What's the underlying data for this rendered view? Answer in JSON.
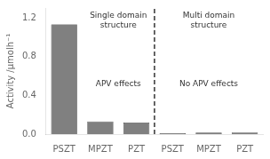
{
  "chart_data": {
    "type": "bar",
    "categories": [
      "PSZT",
      "MPZT",
      "PZT",
      "PSZT",
      "MPZT",
      "PZT"
    ],
    "values": [
      1.13,
      0.13,
      0.12,
      0.01,
      0.015,
      0.015
    ],
    "color": "#808080",
    "ylabel": "Activity /μmolh⁻¹",
    "ylim": [
      0,
      1.3
    ],
    "yticks": [
      {
        "value": 0,
        "label": "0.0"
      },
      0.4,
      0.8,
      1.2
    ],
    "grid": false,
    "annotations": [
      "Single domain\nstructure",
      "Multi domain\nstructure",
      "APV effects",
      "No APV effects"
    ]
  }
}
